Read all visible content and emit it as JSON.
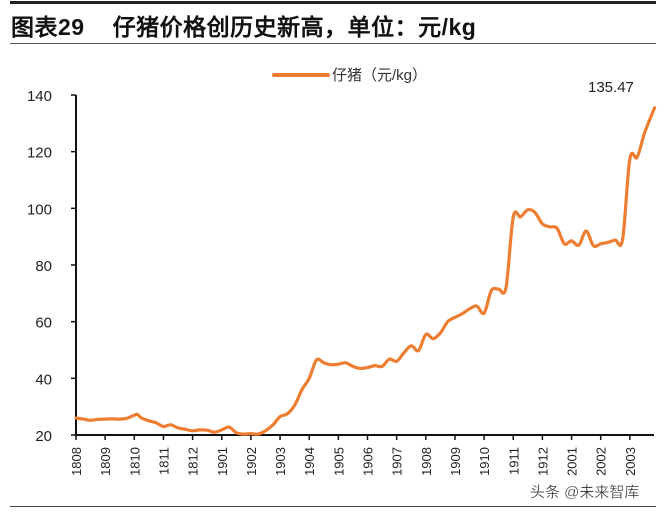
{
  "header": {
    "figure_label": "图表29",
    "title": "仔猪价格创历史新高，单位：元/kg"
  },
  "legend": {
    "items": [
      {
        "label": "仔猪（元/kg）",
        "color": "#ED7D31"
      }
    ]
  },
  "annotation": {
    "last_value_label": "135.47"
  },
  "watermark": "头条 @未来智库",
  "chart_data": {
    "type": "line",
    "title": "仔猪价格创历史新高，单位：元/kg",
    "xlabel": "",
    "ylabel": "",
    "ylim": [
      20,
      140
    ],
    "yticks": [
      20,
      40,
      60,
      80,
      100,
      120,
      140
    ],
    "grid": false,
    "legend_position": "top-center",
    "categories": [
      "1808",
      "1809",
      "1810",
      "1811",
      "1812",
      "1901",
      "1902",
      "1903",
      "1904",
      "1905",
      "1906",
      "1907",
      "1908",
      "1909",
      "1910",
      "1911",
      "1912",
      "2001",
      "2002",
      "2003"
    ],
    "series": [
      {
        "name": "仔猪（元/kg）",
        "color": "#ED7D31",
        "x": [
          0,
          0.25,
          0.5,
          0.75,
          1,
          1.25,
          1.5,
          1.75,
          2,
          2.1,
          2.25,
          2.5,
          2.75,
          3,
          3.25,
          3.5,
          3.75,
          4,
          4.25,
          4.5,
          4.75,
          5,
          5.25,
          5.5,
          5.75,
          6,
          6.25,
          6.5,
          6.75,
          7,
          7.25,
          7.5,
          7.75,
          8,
          8.25,
          8.5,
          8.75,
          9,
          9.25,
          9.5,
          9.75,
          10,
          10.25,
          10.5,
          10.75,
          11,
          11.25,
          11.5,
          11.75,
          12,
          12.25,
          12.5,
          12.75,
          13,
          13.25,
          13.5,
          13.75,
          14,
          14.25,
          14.5,
          14.75,
          15,
          15.25,
          15.5,
          15.75,
          16,
          16.25,
          16.5,
          16.75,
          17,
          17.25,
          17.5,
          17.75,
          18,
          18.25,
          18.5,
          18.75,
          19,
          19.25,
          19.5,
          19.75,
          19.85
        ],
        "values": [
          26.0,
          25.6,
          25.2,
          25.5,
          25.6,
          25.7,
          25.6,
          25.9,
          27.0,
          27.3,
          26.0,
          25.0,
          24.3,
          23.0,
          23.6,
          22.5,
          22.0,
          21.5,
          21.8,
          21.7,
          21.0,
          21.8,
          22.8,
          20.8,
          20.3,
          20.5,
          20.3,
          21.5,
          23.5,
          26.5,
          27.5,
          30.5,
          36.0,
          40.0,
          46.5,
          45.5,
          44.8,
          45.0,
          45.5,
          44.2,
          43.5,
          43.8,
          44.5,
          44.2,
          46.8,
          46.0,
          49.0,
          51.5,
          49.8,
          55.5,
          54.0,
          56.0,
          60.0,
          61.5,
          62.8,
          64.5,
          65.5,
          63.0,
          71.0,
          71.5,
          72.0,
          97.0,
          97.0,
          99.5,
          98.5,
          94.5,
          93.5,
          93.0,
          87.5,
          88.5,
          87.0,
          92.0,
          86.8,
          87.5,
          88.0,
          88.8,
          89.0,
          117.5,
          118.0,
          126.5,
          133.0,
          135.47
        ]
      }
    ]
  }
}
